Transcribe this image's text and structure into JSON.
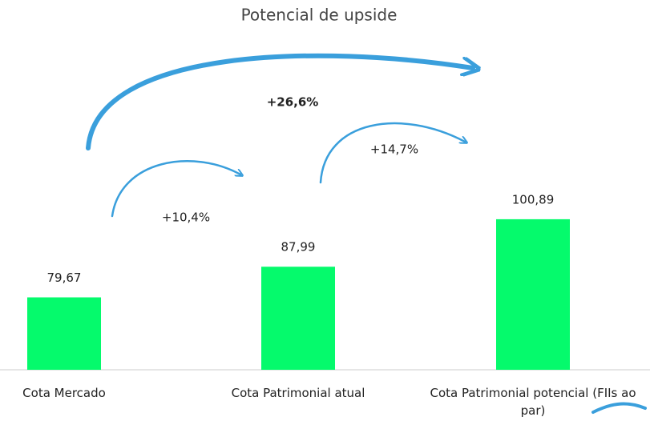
{
  "chart_data": {
    "type": "bar",
    "title": "Potencial de upside",
    "categories": [
      "Cota Mercado",
      "Cota Patrimonial atual",
      "Cota Patrimonial potencial (FIIs ao par)"
    ],
    "values": [
      79.67,
      87.99,
      100.89
    ],
    "value_labels": [
      "79,67",
      "87,99",
      "100,89"
    ],
    "color": "#05fa6c",
    "ylim": [
      60,
      110
    ],
    "annotations": [
      "+26,6%",
      "+10,4%",
      "+14,7%"
    ]
  }
}
